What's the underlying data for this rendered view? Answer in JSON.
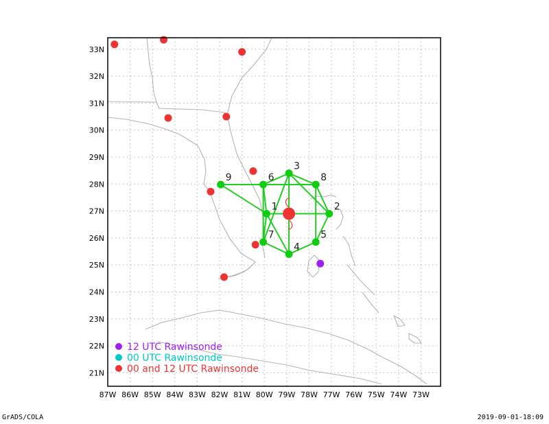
{
  "footer": {
    "left": "GrADS/COLA",
    "right": "2019-09-01-18:09"
  },
  "axes": {
    "lon_labels": [
      "87W",
      "86W",
      "85W",
      "84W",
      "83W",
      "82W",
      "81W",
      "80W",
      "79W",
      "78W",
      "77W",
      "76W",
      "75W",
      "74W",
      "73W"
    ],
    "lat_labels": [
      "21N",
      "22N",
      "23N",
      "24N",
      "25N",
      "26N",
      "27N",
      "28N",
      "29N",
      "30N",
      "31N",
      "32N",
      "33N"
    ],
    "lon_range": [
      -87,
      -72.2
    ],
    "lat_range": [
      20.5,
      33.4
    ]
  },
  "colors": {
    "coast": "#b4b4b4",
    "grid": "#b4b4b4",
    "link": "#22cc22",
    "point_green": "#11cc11",
    "rawin_12": "#a020f0",
    "rawin_00": "#00c8c8",
    "rawin_both": "#ee3333",
    "center": "#ee3333"
  },
  "center": {
    "lon": -78.9,
    "lat": 26.9
  },
  "points": [
    {
      "label": "1",
      "lon": -79.9,
      "lat": 26.9
    },
    {
      "label": "2",
      "lon": -77.1,
      "lat": 26.9
    },
    {
      "label": "3",
      "lon": -78.9,
      "lat": 28.4
    },
    {
      "label": "4",
      "lon": -78.9,
      "lat": 25.4
    },
    {
      "label": "5",
      "lon": -77.7,
      "lat": 25.85
    },
    {
      "label": "6",
      "lon": -80.05,
      "lat": 27.98
    },
    {
      "label": "7",
      "lon": -80.05,
      "lat": 25.85
    },
    {
      "label": "8",
      "lon": -77.7,
      "lat": 27.98
    },
    {
      "label": "9",
      "lon": -81.95,
      "lat": 27.98
    }
  ],
  "links": [
    [
      "9",
      "6"
    ],
    [
      "6",
      "8"
    ],
    [
      "9",
      "1"
    ],
    [
      "6",
      "1"
    ],
    [
      "6",
      "7"
    ],
    [
      "1",
      "7"
    ],
    [
      "1",
      "2"
    ],
    [
      "3",
      "4"
    ],
    [
      "3",
      "2"
    ],
    [
      "8",
      "2"
    ],
    [
      "7",
      "4"
    ],
    [
      "4",
      "5"
    ],
    [
      "5",
      "2"
    ],
    [
      "6",
      "3"
    ],
    [
      "3",
      "8"
    ],
    [
      "8",
      "5"
    ],
    [
      "7",
      "3"
    ],
    [
      "4",
      "1"
    ]
  ],
  "rawinsondes_12": [
    {
      "lon": -77.5,
      "lat": 25.05
    }
  ],
  "rawinsondes_both": [
    {
      "lon": -86.7,
      "lat": 33.18
    },
    {
      "lon": -84.5,
      "lat": 33.35
    },
    {
      "lon": -81.0,
      "lat": 32.9
    },
    {
      "lon": -84.3,
      "lat": 30.45
    },
    {
      "lon": -81.7,
      "lat": 30.5
    },
    {
      "lon": -80.5,
      "lat": 28.48
    },
    {
      "lon": -82.4,
      "lat": 27.72
    },
    {
      "lon": -80.4,
      "lat": 25.75
    },
    {
      "lon": -81.8,
      "lat": 24.55
    }
  ],
  "legend": [
    {
      "label": "12 UTC Rawinsonde",
      "color": "#a020f0"
    },
    {
      "label": "00 UTC Rawinsonde",
      "color": "#00c8c8"
    },
    {
      "label": "00 and 12 UTC Rawinsonde",
      "color": "#ee3333"
    }
  ]
}
